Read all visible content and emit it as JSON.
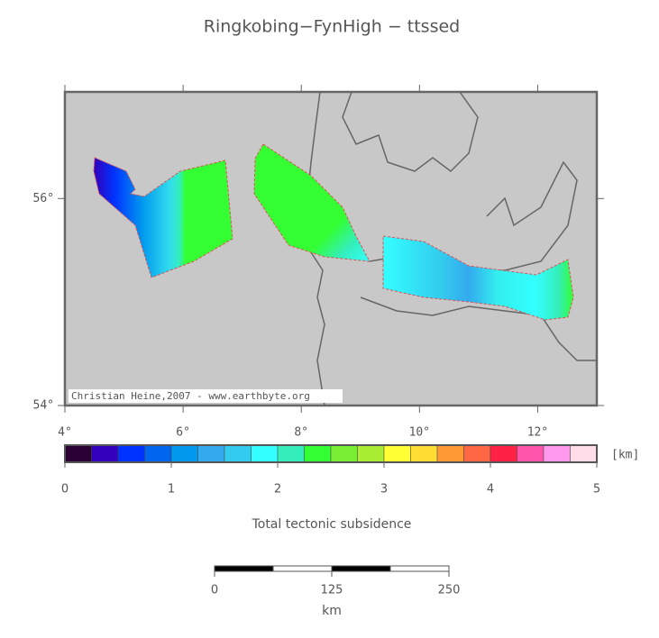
{
  "title": "Ringkobing−FynHigh − ttssed",
  "map": {
    "lonlim": [
      4,
      13
    ],
    "latlim": [
      54,
      57.03
    ],
    "lon_ticks": [
      {
        "value": 4,
        "label": "4°"
      },
      {
        "value": 6,
        "label": "6°"
      },
      {
        "value": 8,
        "label": "8°"
      },
      {
        "value": 10,
        "label": "10°"
      },
      {
        "value": 12,
        "label": "12°"
      }
    ],
    "lat_ticks": [
      {
        "value": 54,
        "label": "54°"
      },
      {
        "value": 56,
        "label": "56°"
      }
    ],
    "credit": "Christian Heine,2007 - www.earthbyte.org"
  },
  "colorbar": {
    "range": [
      0,
      5
    ],
    "ticks": [
      0,
      1,
      2,
      3,
      4,
      5
    ],
    "unit": "[km]",
    "label": "Total tectonic subsidence",
    "colors": [
      "#2a0035",
      "#3300bb",
      "#0033ff",
      "#0066ee",
      "#0099ee",
      "#33aaee",
      "#33ccee",
      "#33ffff",
      "#33eebb",
      "#33ff33",
      "#77ee33",
      "#aaee33",
      "#ffff33",
      "#ffdd33",
      "#ff9933",
      "#ff6644",
      "#ff2244",
      "#ff55aa",
      "#ff99ee",
      "#ffdde8"
    ]
  },
  "scalebar": {
    "range": [
      0,
      250
    ],
    "ticks": [
      0,
      125,
      250
    ],
    "unit": "km"
  }
}
